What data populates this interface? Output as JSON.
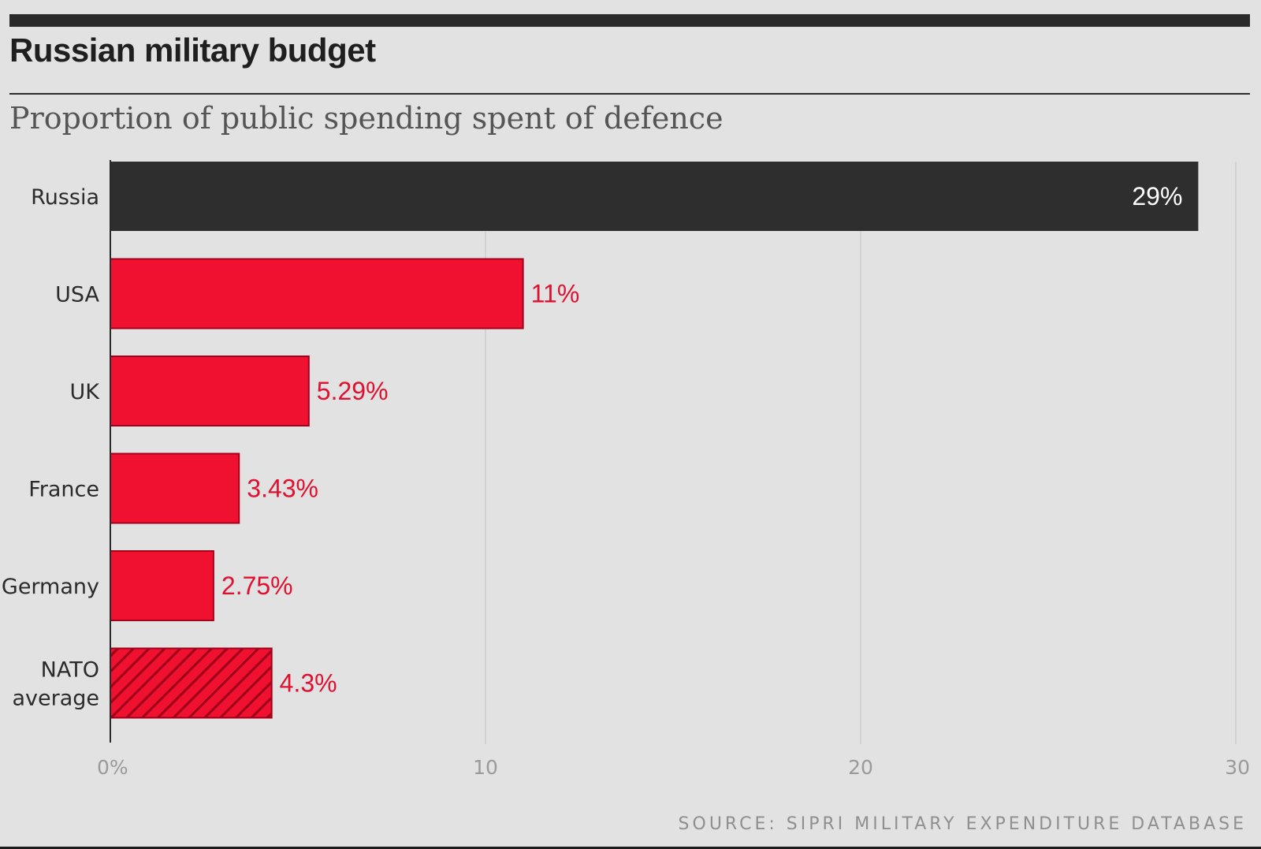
{
  "header": {
    "title": "Russian military budget",
    "subtitle": "Proportion of public spending spent of defence"
  },
  "footer": {
    "source": "SOURCE: SIPRI MILITARY EXPENDITURE DATABASE"
  },
  "colors": {
    "background": "#e2e2e2",
    "highlight_bar": "#2e2e2e",
    "bar": "#f0102f",
    "bar_border": "#a3001a",
    "hatch": "#9d0019",
    "value_label": "#e0102f",
    "highlight_value_label": "#ffffff",
    "gridline": "#d3d3d3",
    "axis": "#2a2a2a"
  },
  "chart_data": {
    "type": "bar",
    "orientation": "horizontal",
    "title": "Russian military budget",
    "subtitle": "Proportion of public spending spent of defence",
    "categories": [
      [
        "Russia"
      ],
      [
        "USA"
      ],
      [
        "UK"
      ],
      [
        "France"
      ],
      [
        "Germany"
      ],
      [
        "NATO",
        "average"
      ]
    ],
    "values": [
      29,
      11,
      5.29,
      3.43,
      2.75,
      4.3
    ],
    "value_labels": [
      "29%",
      "11%",
      "5.29%",
      "3.43%",
      "2.75%",
      "4.3%"
    ],
    "highlight": [
      true,
      false,
      false,
      false,
      false,
      false
    ],
    "hatched": [
      false,
      false,
      false,
      false,
      false,
      true
    ],
    "xlim": [
      0,
      30
    ],
    "xticks": [
      0,
      10,
      20,
      30
    ],
    "xtick_labels": [
      "0%",
      "10",
      "20",
      "30"
    ],
    "grid": true
  }
}
